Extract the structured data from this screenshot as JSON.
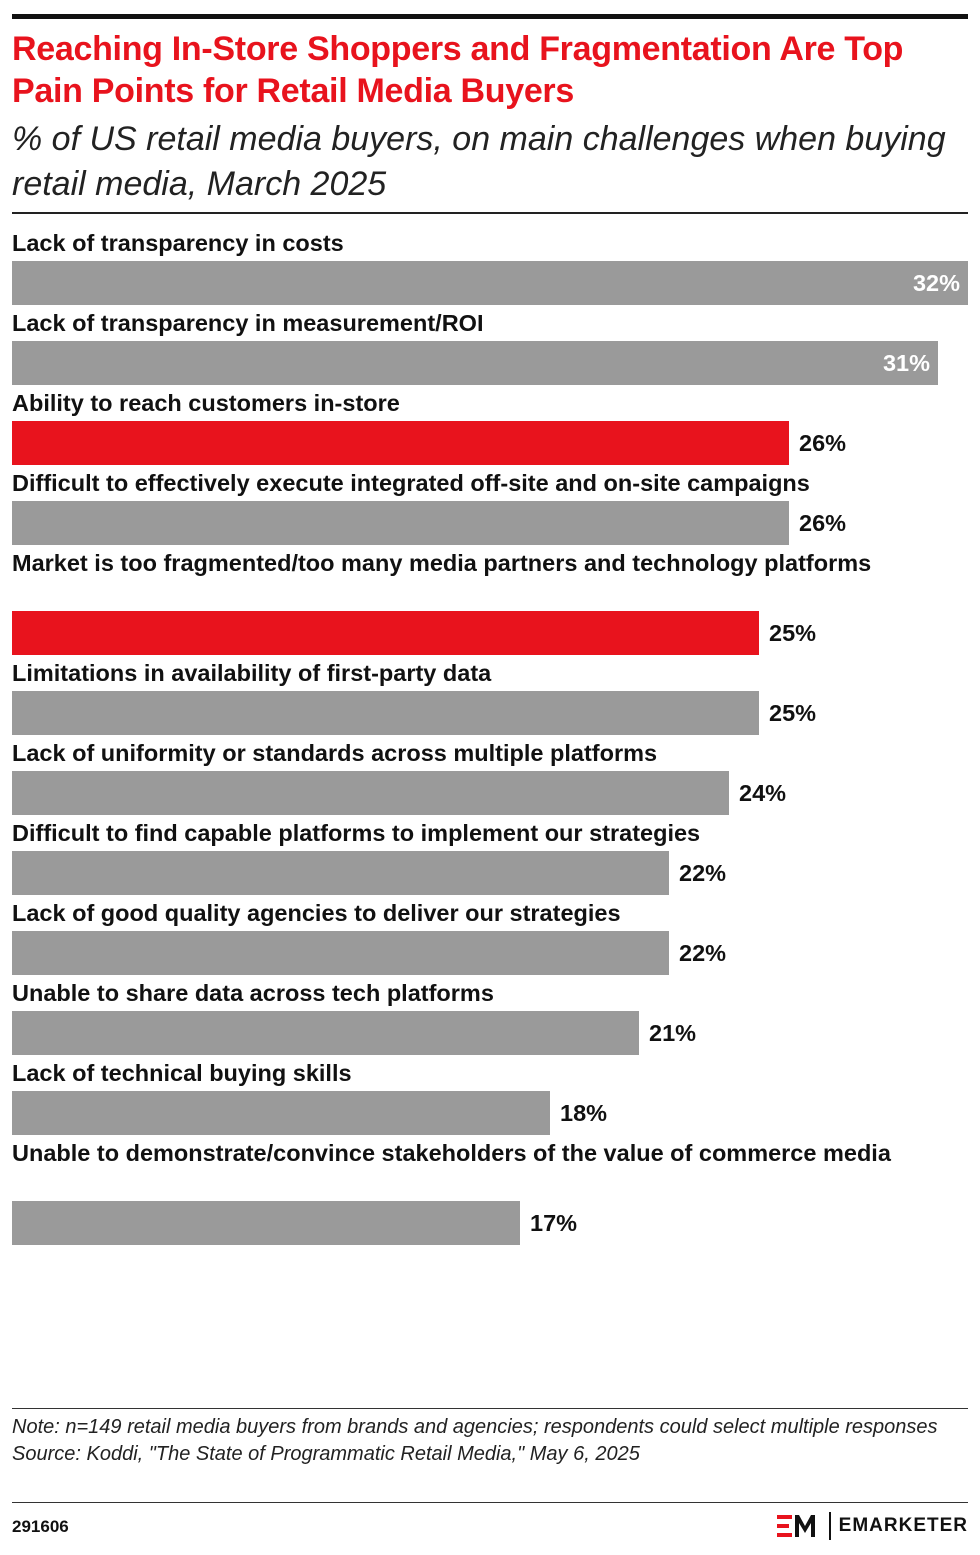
{
  "header": {
    "title": "Reaching In-Store Shoppers and Fragmentation Are Top Pain Points for Retail Media Buyers",
    "subtitle": "% of US retail media buyers, on main challenges when buying retail media, March 2025"
  },
  "colors": {
    "accent": "#e8131d",
    "bar_default": "#9a9a9a",
    "bar_highlight": "#e8131d"
  },
  "chart_data": {
    "type": "bar",
    "orientation": "horizontal",
    "xlim": [
      0,
      32
    ],
    "unit": "%",
    "categories": [
      "Lack of transparency in costs",
      "Lack of transparency in measurement/ROI",
      "Ability to reach customers in-store",
      "Difficult to effectively execute integrated off-site and on-site campaigns",
      "Market is too fragmented/too many media partners and technology platforms",
      "Limitations in availability of first-party data",
      "Lack of uniformity or standards across multiple platforms",
      "Difficult to find capable platforms to implement our strategies",
      "Lack of good quality agencies to deliver our strategies",
      "Unable to share data across tech platforms",
      "Lack of technical buying skills",
      "Unable to demonstrate/convince stakeholders of the value of commerce media"
    ],
    "values": [
      32,
      31,
      26,
      26,
      25,
      25,
      24,
      22,
      22,
      21,
      18,
      17
    ],
    "value_labels": [
      "32%",
      "31%",
      "26%",
      "26%",
      "25%",
      "25%",
      "24%",
      "22%",
      "22%",
      "21%",
      "18%",
      "17%"
    ],
    "highlighted": [
      false,
      false,
      true,
      false,
      true,
      false,
      false,
      false,
      false,
      false,
      false,
      false
    ],
    "grid": false,
    "legend": "none"
  },
  "footer": {
    "note": "Note: n=149 retail media buyers from brands and agencies; respondents could select multiple responses",
    "source": "Source: Koddi, \"The State of Programmatic Retail Media,\" May 6, 2025",
    "chart_id": "291606",
    "brand": "EMARKETER"
  }
}
